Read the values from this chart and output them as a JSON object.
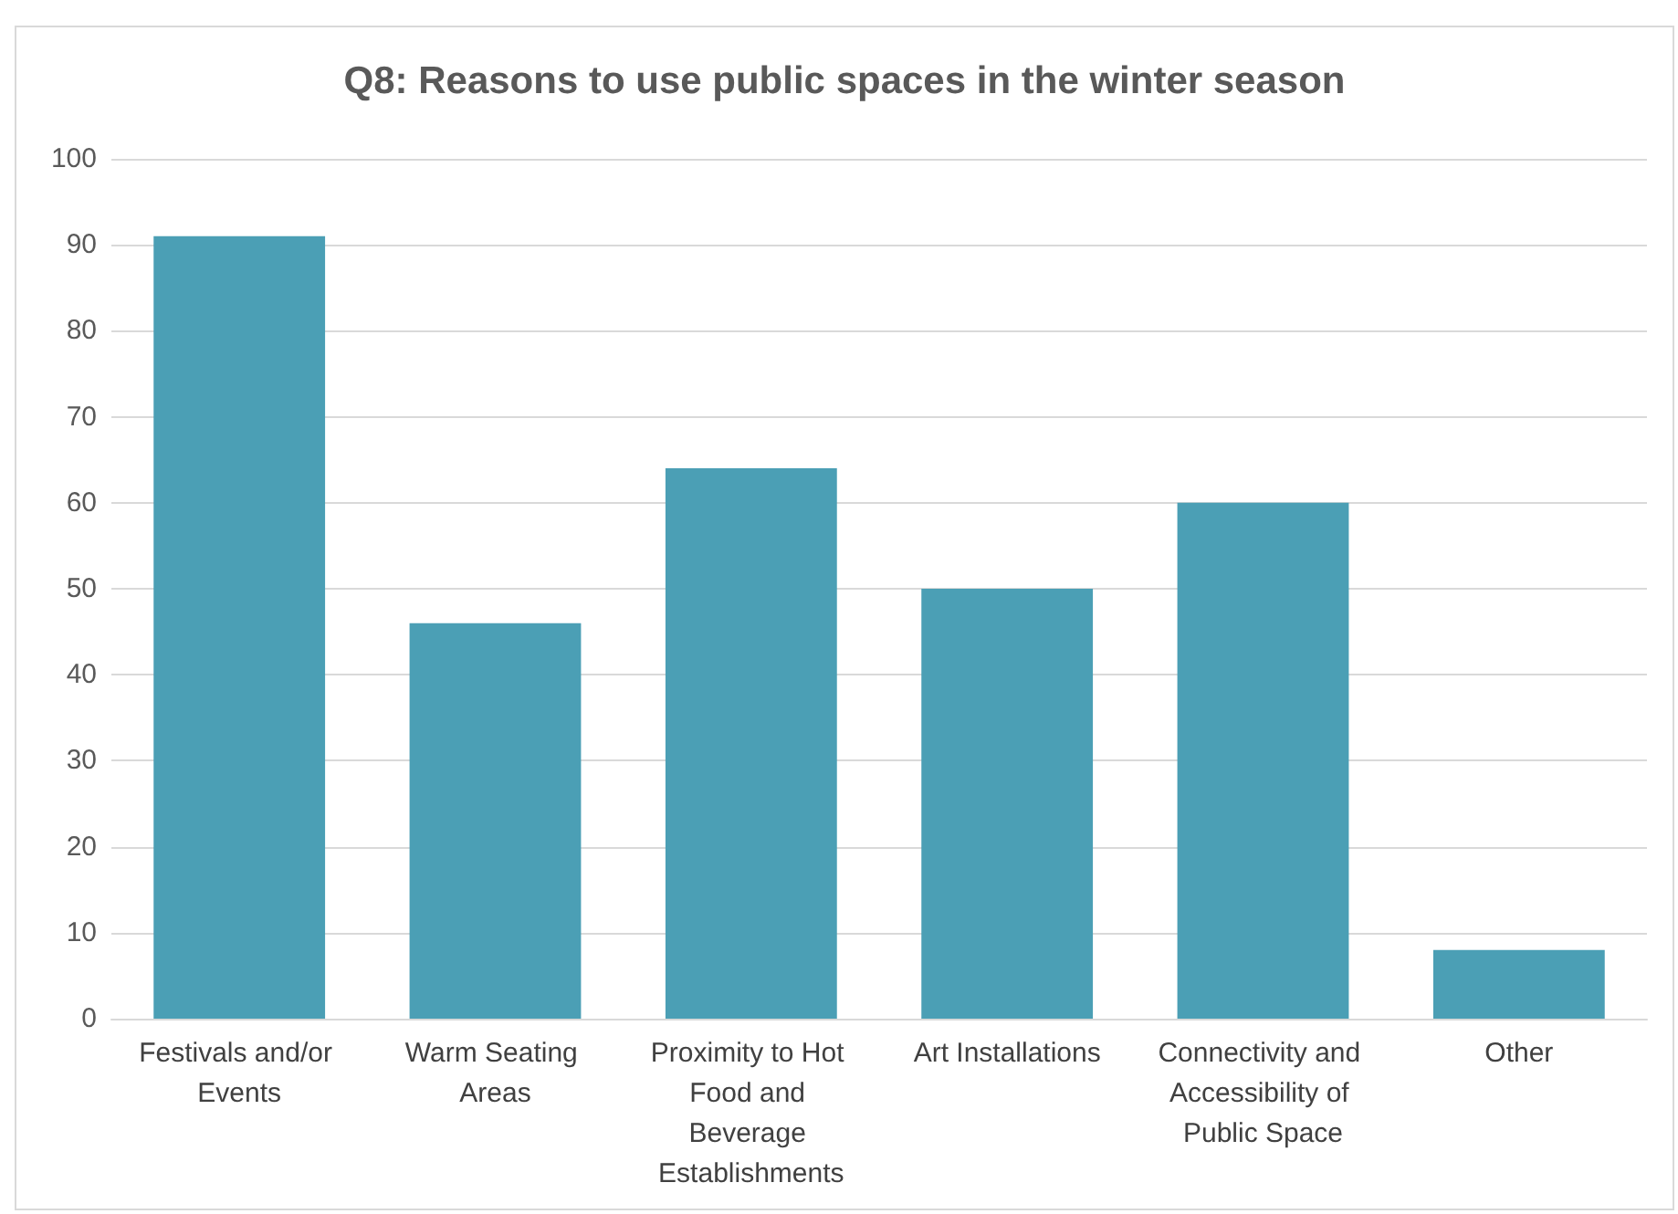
{
  "chart_data": {
    "type": "bar",
    "title": "Q8: Reasons to use public spaces in the winter season",
    "categories": [
      "Festivals and/or Events",
      "Warm Seating Areas",
      "Proximity to Hot Food and Beverage Establishments",
      "Art Installations",
      "Connectivity and Accessibility of Public Space",
      "Other"
    ],
    "values": [
      91,
      46,
      64,
      50,
      60,
      8
    ],
    "color": "#4b9fb5",
    "ylim": [
      0,
      100
    ],
    "yticks": [
      0,
      10,
      20,
      30,
      40,
      50,
      60,
      70,
      80,
      90,
      100
    ],
    "grid": "y"
  }
}
